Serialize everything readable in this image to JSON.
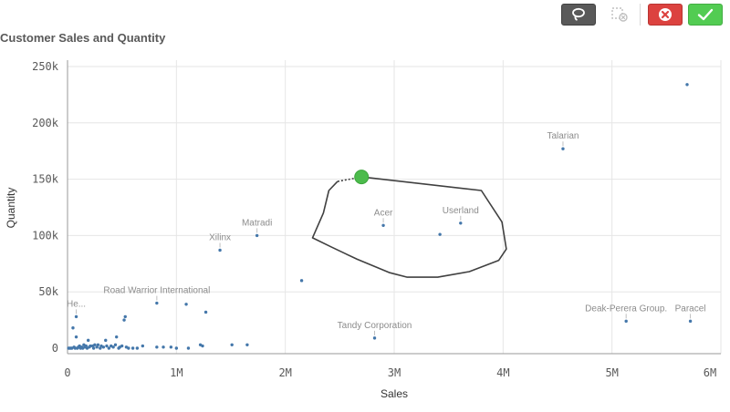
{
  "toolbar": {
    "lasso_icon": "lasso-icon",
    "clear_icon": "clear-selection-icon",
    "cancel_icon": "close-icon",
    "confirm_icon": "checkmark-icon",
    "cancel_color": "#dc423f",
    "confirm_color": "#52cc52"
  },
  "chart_data": {
    "type": "scatter",
    "title": "Customer Sales and Quantity",
    "xlabel": "Sales",
    "ylabel": "Quantity",
    "xlim": [
      0,
      6000000
    ],
    "ylim": [
      0,
      250000
    ],
    "x_ticks": [
      0,
      1000000,
      2000000,
      3000000,
      4000000,
      5000000,
      6000000
    ],
    "x_tick_labels": [
      "0",
      "1M",
      "2M",
      "3M",
      "4M",
      "5M",
      "6M"
    ],
    "y_ticks": [
      0,
      50000,
      100000,
      150000,
      200000,
      250000
    ],
    "y_tick_labels": [
      "0",
      "50k",
      "100k",
      "150k",
      "200k",
      "250k"
    ],
    "grid": true,
    "point_color": "#4477aa",
    "labeled_points": [
      {
        "label": "Talarian",
        "x": 4550000,
        "y": 177000
      },
      {
        "label": "Acer",
        "x": 2900000,
        "y": 109000
      },
      {
        "label": "Userland",
        "x": 3610000,
        "y": 111000
      },
      {
        "label": "Matradi",
        "x": 1740000,
        "y": 100000
      },
      {
        "label": "Xilinx",
        "x": 1400000,
        "y": 87000
      },
      {
        "label": "Road Warrior International",
        "x": 820000,
        "y": 40000
      },
      {
        "label": "He...",
        "x": 80000,
        "y": 28000
      },
      {
        "label": "Tandy Corporation",
        "x": 2820000,
        "y": 9000
      },
      {
        "label": "Deak-Perera Group.",
        "x": 5130000,
        "y": 24000
      },
      {
        "label": "Paracel",
        "x": 5720000,
        "y": 24000
      }
    ],
    "points": [
      [
        5690000,
        234000
      ],
      [
        3420000,
        101000
      ],
      [
        2150000,
        60000
      ],
      [
        1090000,
        39000
      ],
      [
        1270000,
        32000
      ],
      [
        530000,
        28000
      ],
      [
        520000,
        25000
      ],
      [
        50000,
        18000
      ],
      [
        80000,
        10000
      ],
      [
        190000,
        7000
      ],
      [
        350000,
        7000
      ],
      [
        450000,
        10000
      ],
      [
        1510000,
        3000
      ],
      [
        1650000,
        3000
      ],
      [
        1240000,
        2000
      ],
      [
        1220000,
        3000
      ],
      [
        690000,
        2000
      ],
      [
        820000,
        1000
      ],
      [
        880000,
        1000
      ],
      [
        950000,
        1000
      ],
      [
        1000000,
        0
      ],
      [
        1110000,
        0
      ],
      [
        600000,
        0
      ],
      [
        640000,
        0
      ],
      [
        540000,
        1000
      ],
      [
        470000,
        0
      ],
      [
        420000,
        1000
      ],
      [
        380000,
        0
      ],
      [
        330000,
        1000
      ],
      [
        300000,
        0
      ],
      [
        270000,
        1000
      ],
      [
        240000,
        0
      ],
      [
        210000,
        2000
      ],
      [
        180000,
        0
      ],
      [
        160000,
        1000
      ],
      [
        140000,
        0
      ],
      [
        120000,
        0
      ],
      [
        100000,
        1000
      ],
      [
        90000,
        0
      ],
      [
        70000,
        0
      ],
      [
        60000,
        1000
      ],
      [
        40000,
        0
      ],
      [
        30000,
        0
      ],
      [
        20000,
        0
      ],
      [
        10000,
        0
      ],
      [
        500000,
        2000
      ],
      [
        560000,
        0
      ],
      [
        440000,
        3000
      ],
      [
        360000,
        2000
      ],
      [
        280000,
        3000
      ],
      [
        230000,
        2000
      ],
      [
        150000,
        3000
      ],
      [
        110000,
        2000
      ],
      [
        130000,
        1000
      ],
      [
        170000,
        2000
      ],
      [
        200000,
        1000
      ],
      [
        250000,
        3000
      ],
      [
        310000,
        2000
      ],
      [
        400000,
        2000
      ],
      [
        480000,
        1000
      ]
    ],
    "selection_marker": {
      "x": 2700000,
      "y": 152000,
      "color": "#4cbb4c"
    },
    "lasso_path": [
      [
        2700000,
        152000
      ],
      [
        3800000,
        140000
      ],
      [
        3990000,
        112000
      ],
      [
        4030000,
        88000
      ],
      [
        3960000,
        78000
      ],
      [
        3690000,
        68000
      ],
      [
        3400000,
        63000
      ],
      [
        3120000,
        63000
      ],
      [
        2960000,
        67000
      ],
      [
        2660000,
        79000
      ],
      [
        2550000,
        84000
      ],
      [
        2420000,
        90000
      ],
      [
        2250000,
        98000
      ],
      [
        2350000,
        120000
      ],
      [
        2400000,
        140000
      ],
      [
        2480000,
        148000
      ]
    ]
  }
}
